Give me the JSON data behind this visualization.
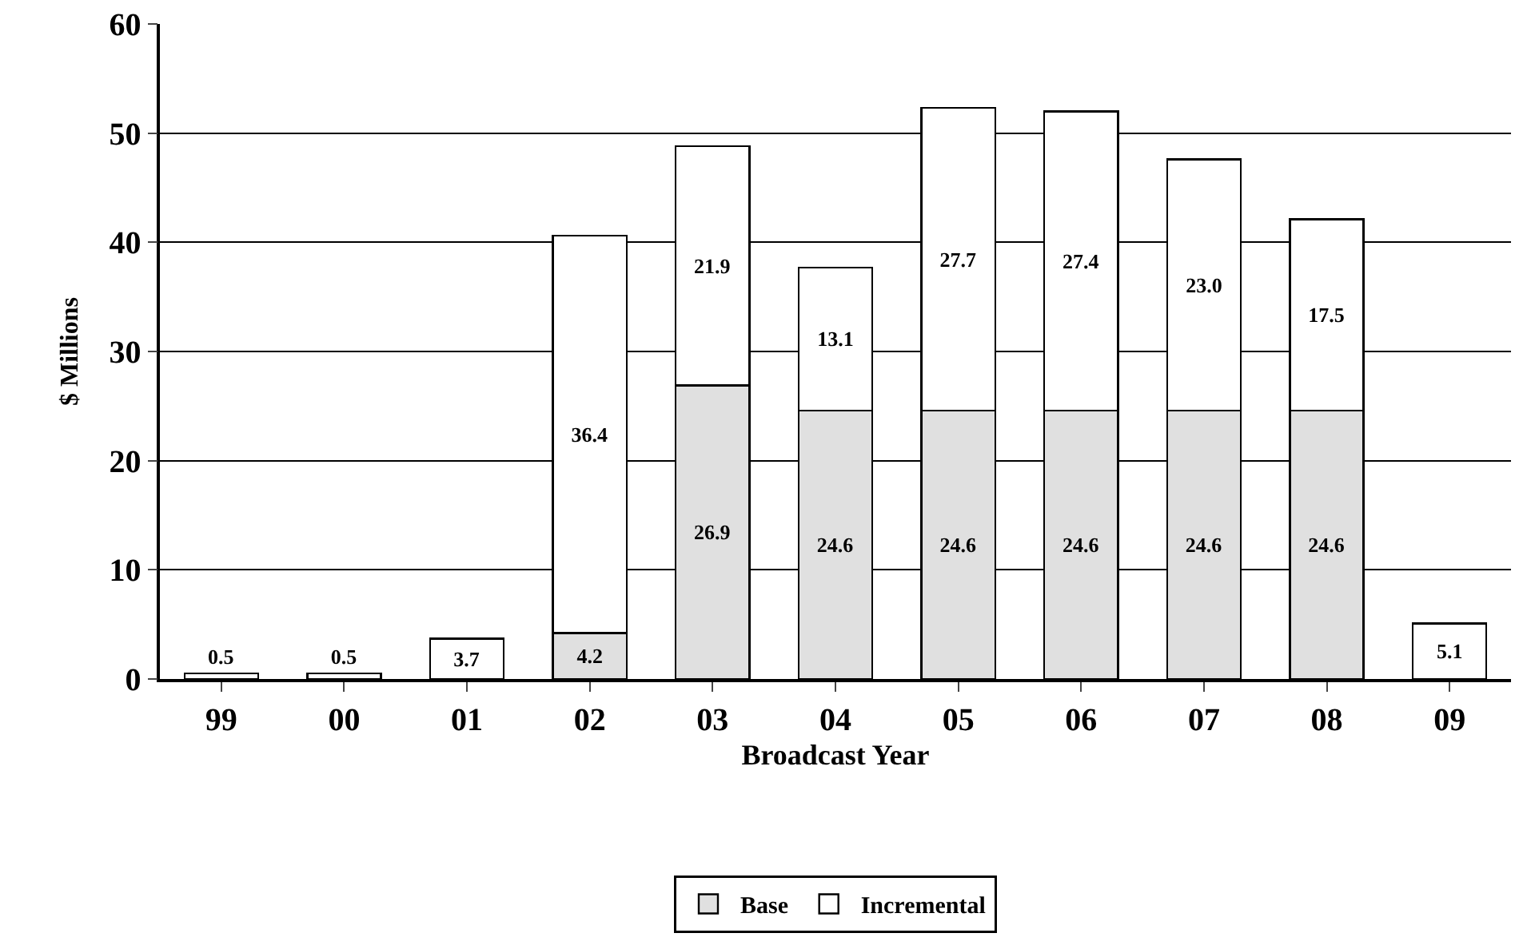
{
  "chart_data": {
    "type": "bar",
    "stacked": true,
    "xlabel": "Broadcast Year",
    "ylabel": "$ Millions",
    "categories": [
      "99",
      "00",
      "01",
      "02",
      "03",
      "04",
      "05",
      "06",
      "07",
      "08",
      "09"
    ],
    "series": [
      {
        "name": "Base",
        "color": "#e0e0e0",
        "values": [
          null,
          null,
          null,
          4.2,
          26.9,
          24.6,
          24.6,
          24.6,
          24.6,
          24.6,
          null
        ],
        "value_labels": [
          null,
          null,
          null,
          "4.2",
          "26.9",
          "24.6",
          "24.6",
          "24.6",
          "24.6",
          "24.6",
          null
        ]
      },
      {
        "name": "Incremental",
        "color": "#ffffff",
        "values": [
          0.5,
          0.5,
          3.7,
          36.4,
          21.9,
          13.1,
          27.7,
          27.4,
          23.0,
          17.5,
          5.1
        ],
        "value_labels": [
          "0.5",
          "0.5",
          "3.7",
          "36.4",
          "21.9",
          "13.1",
          "27.7",
          "27.4",
          "23.0",
          "17.5",
          "5.1"
        ]
      }
    ],
    "ylim": [
      0,
      60
    ],
    "yticks": [
      0,
      10,
      20,
      30,
      40,
      50,
      60
    ],
    "grid": "y",
    "legend": "bottom"
  }
}
